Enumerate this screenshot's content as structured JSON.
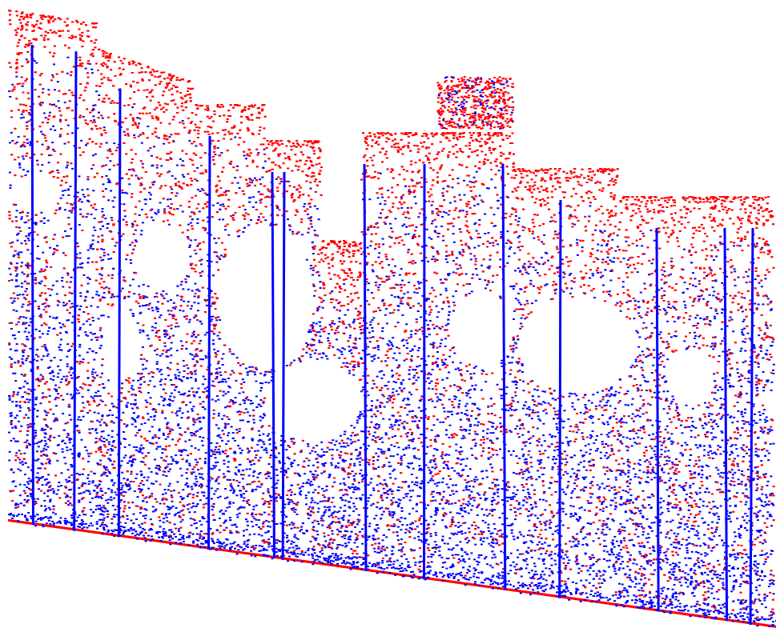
{
  "image": {
    "description_kind": "lidar-point-cloud",
    "colors": {
      "background": "#ffffff",
      "class_a": "#ff0000",
      "class_b": "#0000ff"
    }
  }
}
